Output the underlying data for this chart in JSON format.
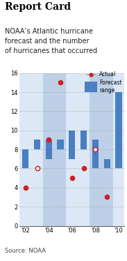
{
  "title": "Report Card",
  "subtitle": "NOAA’s Atlantic hurricane\nforecast and the number\nof hurricanes that occurred",
  "source": "Source: NOAA",
  "years": [
    2002,
    2003,
    2004,
    2005,
    2006,
    2007,
    2008,
    2009,
    2010
  ],
  "year_labels_even": [
    "'02",
    "'04",
    "'06",
    "'08",
    "'10"
  ],
  "year_positions_even": [
    0,
    2,
    4,
    6,
    8
  ],
  "forecast_low": [
    6,
    8,
    7,
    8,
    7,
    8,
    6,
    6,
    6
  ],
  "forecast_high": [
    8,
    9,
    9,
    9,
    10,
    10,
    9,
    7,
    14
  ],
  "actual": [
    4,
    6,
    9,
    15,
    5,
    6,
    8,
    3,
    null
  ],
  "actual_open": [
    false,
    true,
    false,
    false,
    false,
    false,
    true,
    false,
    false
  ],
  "ylim": [
    0,
    16
  ],
  "yticks": [
    0,
    2,
    4,
    6,
    8,
    10,
    12,
    14,
    16
  ],
  "bar_color": "#4a7fc1",
  "bg_color_light": "#dce8f5",
  "bg_color_dark": "#bdd0e8",
  "dot_color": "#cc2222",
  "dot_open_fill": "#ffffff",
  "legend_actual_label": "Actual",
  "legend_forecast_label": "Forecast\nrange",
  "title_fontsize": 10,
  "subtitle_fontsize": 7,
  "axis_fontsize": 6,
  "source_fontsize": 6
}
